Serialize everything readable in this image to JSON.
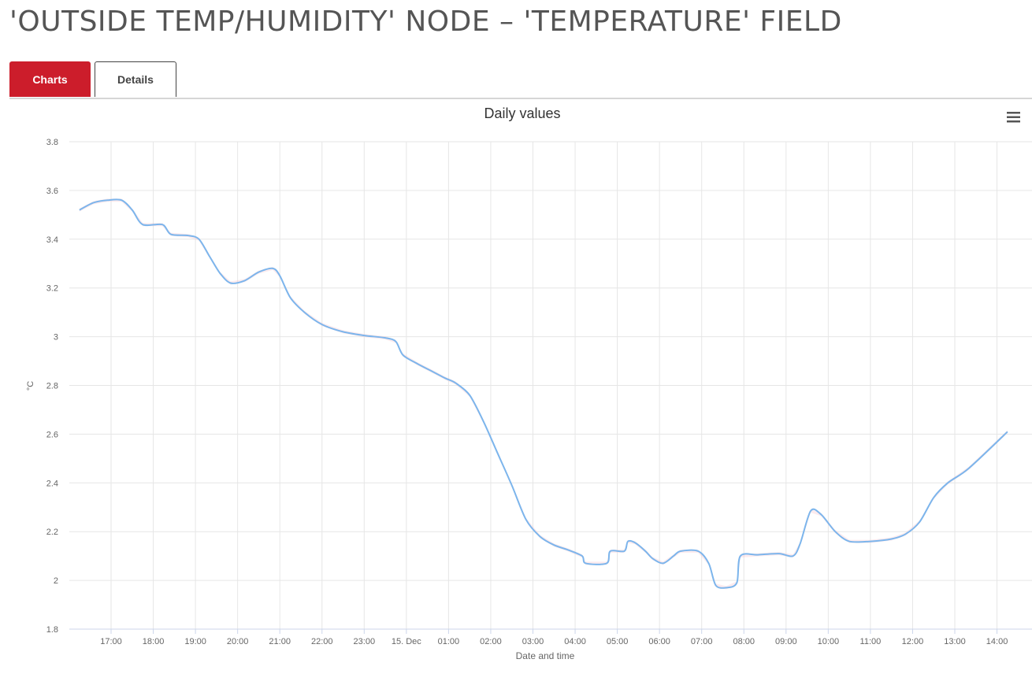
{
  "header": {
    "title": "'OUTSIDE TEMP/HUMIDITY' NODE – 'TEMPERATURE' FIELD"
  },
  "tabs": [
    {
      "label": "Charts",
      "active": true
    },
    {
      "label": "Details",
      "active": false
    }
  ],
  "menu_icon": "hamburger-menu-icon",
  "colors": {
    "accent": "#cc1d2b",
    "series_line": "#7cb5ec",
    "range_band": "#f7c6cf"
  },
  "chart_data": {
    "type": "line",
    "title": "Daily values",
    "xlabel": "Date and time",
    "ylabel": "°C",
    "ylim": [
      1.8,
      3.8
    ],
    "yticks": [
      "1.8",
      "2",
      "2.2",
      "2.4",
      "2.6",
      "2.8",
      "3",
      "3.2",
      "3.4",
      "3.6",
      "3.8"
    ],
    "xticks": [
      "17:00",
      "18:00",
      "19:00",
      "20:00",
      "21:00",
      "22:00",
      "23:00",
      "15. Dec",
      "01:00",
      "02:00",
      "03:00",
      "04:00",
      "05:00",
      "06:00",
      "07:00",
      "08:00",
      "09:00",
      "10:00",
      "11:00",
      "12:00",
      "13:00",
      "14:00"
    ],
    "grid": true,
    "series": [
      {
        "values": [
          [
            "14 Dec 16:15",
            3.52
          ],
          [
            "14 Dec 16:35",
            3.55
          ],
          [
            "14 Dec 16:55",
            3.56
          ],
          [
            "14 Dec 17:15",
            3.56
          ],
          [
            "14 Dec 17:30",
            3.52
          ],
          [
            "14 Dec 17:45",
            3.46
          ],
          [
            "14 Dec 18:13",
            3.46
          ],
          [
            "14 Dec 18:25",
            3.42
          ],
          [
            "14 Dec 18:50",
            3.415
          ],
          [
            "14 Dec 19:05",
            3.4
          ],
          [
            "14 Dec 19:20",
            3.33
          ],
          [
            "14 Dec 19:35",
            3.26
          ],
          [
            "14 Dec 19:50",
            3.22
          ],
          [
            "14 Dec 20:10",
            3.23
          ],
          [
            "14 Dec 20:30",
            3.265
          ],
          [
            "14 Dec 20:50",
            3.28
          ],
          [
            "14 Dec 21:00",
            3.25
          ],
          [
            "14 Dec 21:15",
            3.16
          ],
          [
            "14 Dec 21:35",
            3.1
          ],
          [
            "14 Dec 22:00",
            3.05
          ],
          [
            "14 Dec 22:30",
            3.02
          ],
          [
            "14 Dec 23:00",
            3.005
          ],
          [
            "14 Dec 23:30",
            2.995
          ],
          [
            "14 Dec 23:45",
            2.98
          ],
          [
            "14 Dec 23:55",
            2.925
          ],
          [
            "15 Dec 00:15",
            2.89
          ],
          [
            "15 Dec 00:35",
            2.86
          ],
          [
            "15 Dec 00:55",
            2.83
          ],
          [
            "15 Dec 01:10",
            2.81
          ],
          [
            "15 Dec 01:30",
            2.76
          ],
          [
            "15 Dec 01:50",
            2.65
          ],
          [
            "15 Dec 02:10",
            2.52
          ],
          [
            "15 Dec 02:30",
            2.39
          ],
          [
            "15 Dec 02:50",
            2.25
          ],
          [
            "15 Dec 03:10",
            2.18
          ],
          [
            "15 Dec 03:30",
            2.145
          ],
          [
            "15 Dec 03:50",
            2.125
          ],
          [
            "15 Dec 04:10",
            2.1
          ],
          [
            "15 Dec 04:15",
            2.07
          ],
          [
            "15 Dec 04:45",
            2.07
          ],
          [
            "15 Dec 04:50",
            2.12
          ],
          [
            "15 Dec 05:10",
            2.12
          ],
          [
            "15 Dec 05:15",
            2.16
          ],
          [
            "15 Dec 05:25",
            2.155
          ],
          [
            "15 Dec 05:40",
            2.12
          ],
          [
            "15 Dec 05:50",
            2.09
          ],
          [
            "15 Dec 06:05",
            2.07
          ],
          [
            "15 Dec 06:20",
            2.1
          ],
          [
            "15 Dec 06:30",
            2.12
          ],
          [
            "15 Dec 06:55",
            2.12
          ],
          [
            "15 Dec 07:10",
            2.07
          ],
          [
            "15 Dec 07:20",
            1.98
          ],
          [
            "15 Dec 07:35",
            1.97
          ],
          [
            "15 Dec 07:50",
            1.99
          ],
          [
            "15 Dec 07:55",
            2.1
          ],
          [
            "15 Dec 08:20",
            2.105
          ],
          [
            "15 Dec 08:50",
            2.11
          ],
          [
            "15 Dec 09:10",
            2.1
          ],
          [
            "15 Dec 09:20",
            2.15
          ],
          [
            "15 Dec 09:35",
            2.285
          ],
          [
            "15 Dec 09:50",
            2.27
          ],
          [
            "15 Dec 10:10",
            2.2
          ],
          [
            "15 Dec 10:30",
            2.16
          ],
          [
            "15 Dec 11:00",
            2.16
          ],
          [
            "15 Dec 11:30",
            2.17
          ],
          [
            "15 Dec 11:50",
            2.19
          ],
          [
            "15 Dec 12:10",
            2.24
          ],
          [
            "15 Dec 12:30",
            2.34
          ],
          [
            "15 Dec 12:50",
            2.4
          ],
          [
            "15 Dec 13:20",
            2.46
          ],
          [
            "15 Dec 14:15",
            2.61
          ]
        ]
      }
    ]
  }
}
